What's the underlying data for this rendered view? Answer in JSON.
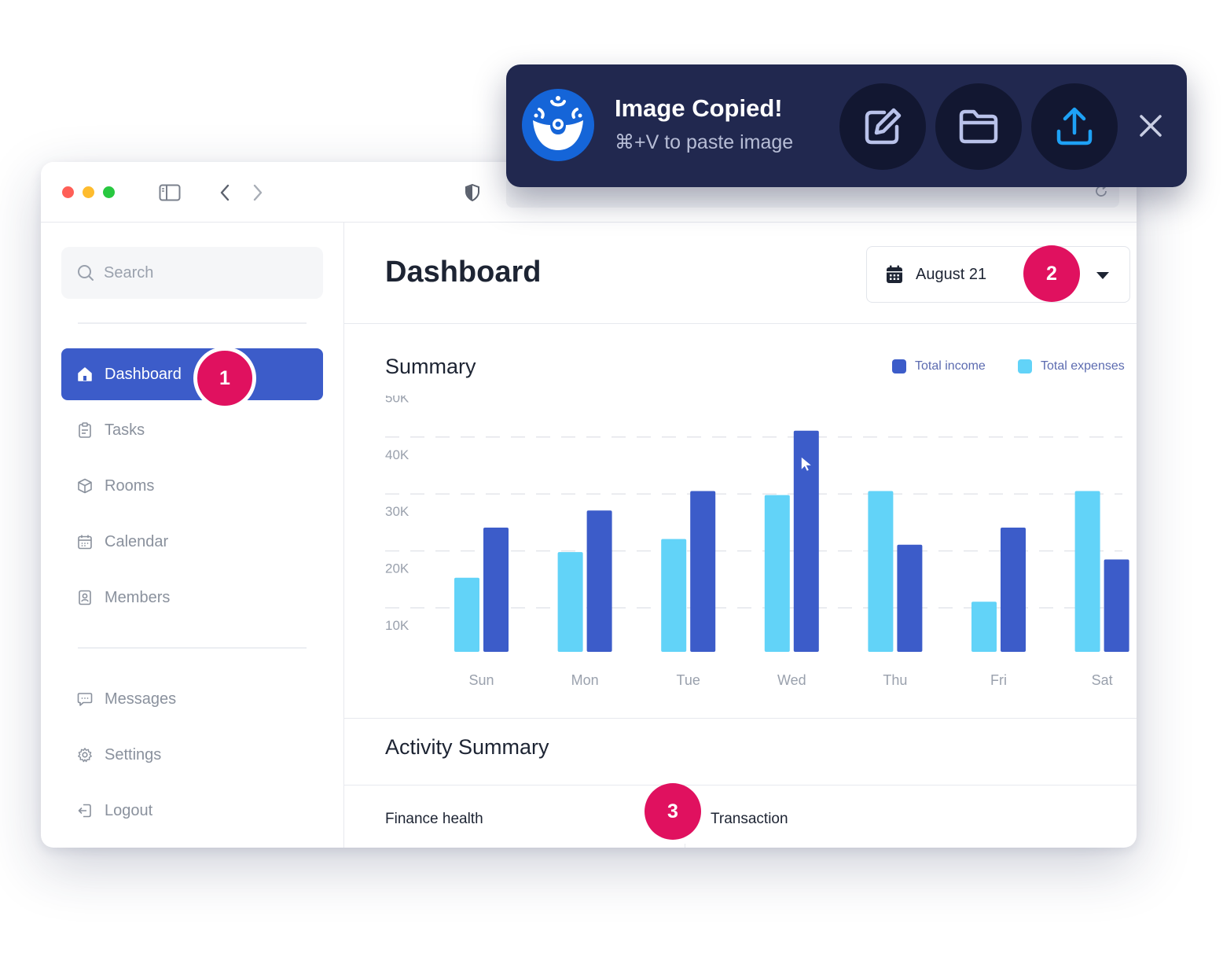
{
  "toast": {
    "title": "Image Copied!",
    "subtitle": "⌘+V to paste image",
    "buttons": [
      "edit-icon",
      "folder-icon",
      "upload-icon"
    ],
    "close_icon": "close-icon"
  },
  "sidebar": {
    "search_placeholder": "Search",
    "items": [
      {
        "label": "Dashboard",
        "icon": "home-icon",
        "active": true
      },
      {
        "label": "Tasks",
        "icon": "clipboard-icon"
      },
      {
        "label": "Rooms",
        "icon": "cube-icon"
      },
      {
        "label": "Calendar",
        "icon": "calendar-icon"
      },
      {
        "label": "Members",
        "icon": "member-card-icon"
      }
    ],
    "bottom_items": [
      {
        "label": "Messages",
        "icon": "message-icon"
      },
      {
        "label": "Settings",
        "icon": "gear-icon"
      },
      {
        "label": "Logout",
        "icon": "logout-icon"
      }
    ]
  },
  "main": {
    "title": "Dashboard",
    "date": "August 21",
    "summary_title": "Summary",
    "activity_title": "Activity Summary",
    "columns": [
      "Finance health",
      "Transaction"
    ]
  },
  "badges": [
    "1",
    "2",
    "3"
  ],
  "colors": {
    "accent": "#3c5cc9",
    "income": "#3c5cc9",
    "expenses": "#62d3f8",
    "badge": "#e0115f",
    "toast_bg": "#21284f"
  },
  "chart_data": {
    "type": "bar",
    "categories": [
      "Sun",
      "Mon",
      "Tue",
      "Wed",
      "Thu",
      "Fri",
      "Sat"
    ],
    "series": [
      {
        "name": "Total expenses",
        "values": [
          23,
          27.5,
          29.8,
          37.5,
          38.2,
          18.8,
          38.2
        ]
      },
      {
        "name": "Total income",
        "values": [
          31.8,
          34.8,
          38.2,
          48.8,
          28.8,
          31.8,
          26.2
        ]
      }
    ],
    "legend": [
      "Total income",
      "Total expenses"
    ],
    "legend_position": "top-right",
    "yticks": [
      "50K",
      "40K",
      "30K",
      "20K",
      "10K"
    ],
    "ylim": [
      8,
      50
    ],
    "grid": true
  }
}
